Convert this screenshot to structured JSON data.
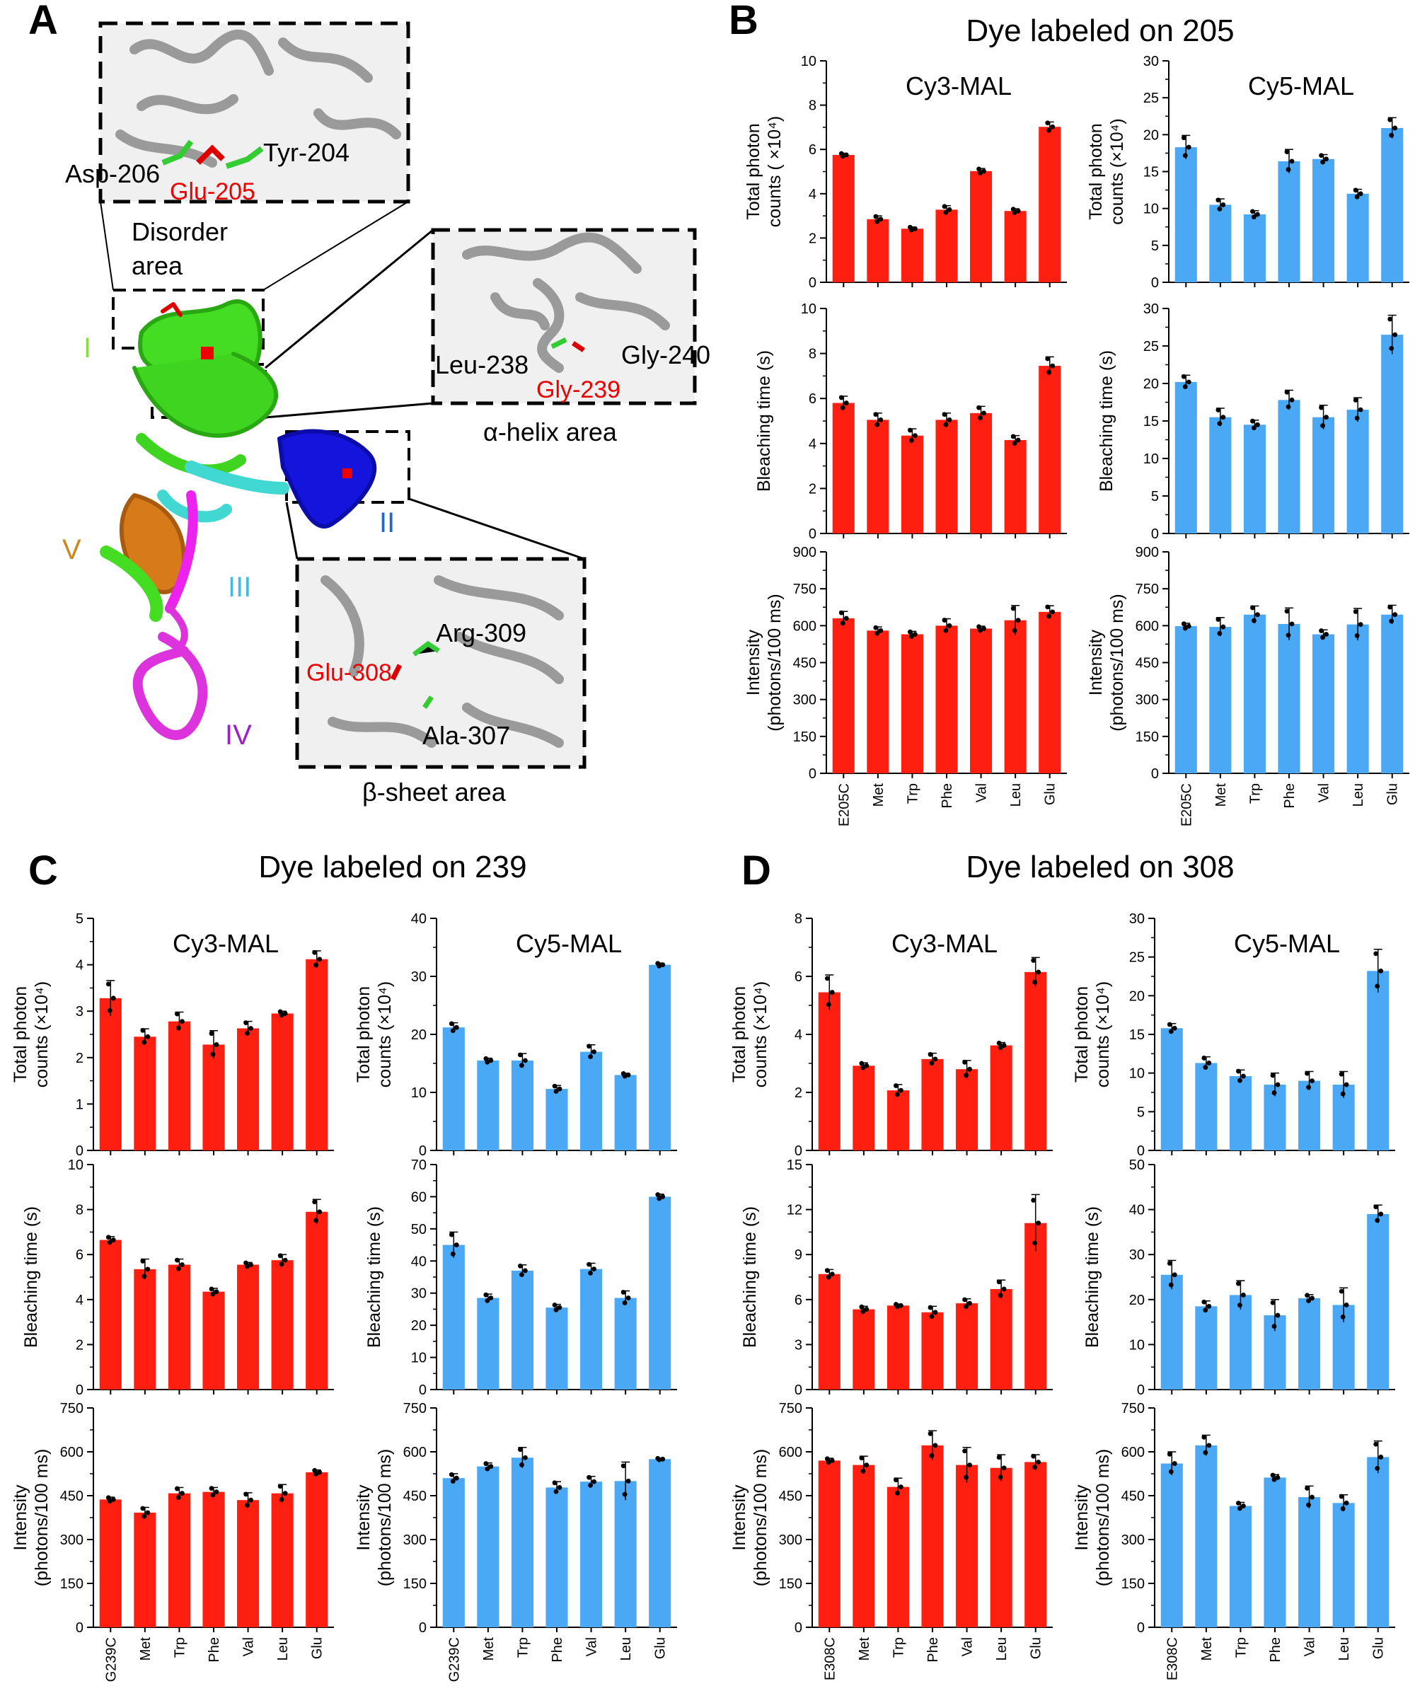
{
  "colors": {
    "cy3": "#ff1f10",
    "cy5": "#4aa8f5"
  },
  "panel_letters": [
    "A",
    "B",
    "C",
    "D"
  ],
  "structure": {
    "labels": {
      "asp206": "Asp-206",
      "glu205": "Glu-205",
      "tyr204": "Tyr-204",
      "disorder1": "Disorder",
      "disorder2": "area",
      "leu238": "Leu-238",
      "gly239": "Gly-239",
      "gly240": "Gly-240",
      "helix": "α-helix area",
      "glu308": "Glu-308",
      "arg309": "Arg-309",
      "ala307": "Ala-307",
      "sheet": "β-sheet area",
      "d1": "I",
      "d2": "II",
      "d3": "III",
      "d4": "IV",
      "d5": "V"
    }
  },
  "chart_data": [
    {
      "type": "bar",
      "group": "B",
      "group_title": "Dye labeled on 205",
      "title": "Cy3-MAL",
      "categories": [
        "E205C",
        "Met",
        "Trp",
        "Phe",
        "Val",
        "Leu",
        "Glu"
      ],
      "values": [
        5.75,
        2.85,
        2.42,
        3.28,
        5.02,
        3.22,
        7.02
      ],
      "errors": [
        0.08,
        0.15,
        0.08,
        0.18,
        0.12,
        0.1,
        0.22
      ],
      "ylabel": [
        "Total photon",
        "counts ( ×10⁴)"
      ],
      "ylim": [
        0,
        10
      ],
      "ticks": [
        0,
        2,
        4,
        6,
        8,
        10
      ],
      "color": "cy3"
    },
    {
      "type": "bar",
      "group": "B",
      "group_title": "Dye labeled on 205",
      "title": "Cy5-MAL",
      "categories": [
        "E205C",
        "Met",
        "Trp",
        "Phe",
        "Val",
        "Leu",
        "Glu"
      ],
      "values": [
        18.3,
        10.5,
        9.2,
        16.4,
        16.7,
        12.0,
        20.9
      ],
      "errors": [
        1.6,
        0.8,
        0.5,
        1.6,
        0.6,
        0.6,
        1.4
      ],
      "ylabel": [
        "Total photon",
        "counts (×10⁴)"
      ],
      "ylim": [
        0,
        30
      ],
      "ticks": [
        0,
        5,
        10,
        15,
        20,
        25,
        30
      ],
      "color": "cy5"
    },
    {
      "type": "bar",
      "group": "B",
      "title": "",
      "categories": [
        "E205C",
        "Met",
        "Trp",
        "Phe",
        "Val",
        "Leu",
        "Glu"
      ],
      "values": [
        5.8,
        5.05,
        4.35,
        5.05,
        5.35,
        4.15,
        7.45
      ],
      "errors": [
        0.3,
        0.3,
        0.3,
        0.3,
        0.3,
        0.2,
        0.4
      ],
      "ylabel": [
        "Bleaching time (s)"
      ],
      "ylim": [
        0,
        10
      ],
      "ticks": [
        0,
        2,
        4,
        6,
        8,
        10
      ],
      "color": "cy3"
    },
    {
      "type": "bar",
      "group": "B",
      "title": "",
      "categories": [
        "E205C",
        "Met",
        "Trp",
        "Phe",
        "Val",
        "Leu",
        "Glu"
      ],
      "values": [
        20.2,
        15.5,
        14.5,
        17.8,
        15.5,
        16.5,
        26.5
      ],
      "errors": [
        0.9,
        1.2,
        0.6,
        1.3,
        1.6,
        1.6,
        2.6
      ],
      "ylabel": [
        "Bleaching time (s)"
      ],
      "ylim": [
        0,
        30
      ],
      "ticks": [
        0,
        5,
        10,
        15,
        20,
        25,
        30
      ],
      "color": "cy5"
    },
    {
      "type": "bar",
      "group": "B",
      "title": "",
      "categories": [
        "E205C",
        "Met",
        "Trp",
        "Phe",
        "Val",
        "Leu",
        "Glu"
      ],
      "values": [
        630,
        580,
        565,
        600,
        588,
        622,
        656
      ],
      "errors": [
        28,
        15,
        12,
        28,
        10,
        60,
        25
      ],
      "ylabel": [
        "Intensity",
        "(photons/100 ms)"
      ],
      "ylim": [
        0,
        900
      ],
      "ticks": [
        0,
        150,
        300,
        450,
        600,
        750,
        900
      ],
      "color": "cy3",
      "show_xlabels": true
    },
    {
      "type": "bar",
      "group": "B",
      "title": "",
      "categories": [
        "E205C",
        "Met",
        "Trp",
        "Phe",
        "Val",
        "Leu",
        "Glu"
      ],
      "values": [
        598,
        595,
        645,
        607,
        565,
        605,
        645
      ],
      "errors": [
        12,
        38,
        35,
        65,
        18,
        65,
        38
      ],
      "ylabel": [
        "Intensity",
        "(photons/100 ms)"
      ],
      "ylim": [
        0,
        900
      ],
      "ticks": [
        0,
        150,
        300,
        450,
        600,
        750,
        900
      ],
      "color": "cy5",
      "show_xlabels": true
    },
    {
      "type": "bar",
      "group": "C",
      "group_title": "Dye labeled on 239",
      "title": "Cy3-MAL",
      "categories": [
        "G239C",
        "Met",
        "Trp",
        "Phe",
        "Val",
        "Leu",
        "Glu"
      ],
      "values": [
        3.28,
        2.45,
        2.78,
        2.28,
        2.63,
        2.95,
        4.12
      ],
      "errors": [
        0.38,
        0.17,
        0.2,
        0.3,
        0.15,
        0.05,
        0.18
      ],
      "ylabel": [
        "Total photon",
        "counts (×10⁴)"
      ],
      "ylim": [
        0,
        5
      ],
      "ticks": [
        0,
        1,
        2,
        3,
        4,
        5
      ],
      "color": "cy3"
    },
    {
      "type": "bar",
      "group": "C",
      "group_title": "Dye labeled on 239",
      "title": "Cy5-MAL",
      "categories": [
        "G239C",
        "Met",
        "Trp",
        "Phe",
        "Val",
        "Leu",
        "Glu"
      ],
      "values": [
        21.2,
        15.5,
        15.5,
        10.6,
        17.0,
        13.0,
        32.0
      ],
      "errors": [
        0.8,
        0.4,
        1.2,
        0.6,
        1.2,
        0.3,
        0.3
      ],
      "ylabel": [
        "Total photon",
        "counts (×10⁴)"
      ],
      "ylim": [
        0,
        40
      ],
      "ticks": [
        0,
        10,
        20,
        30,
        40
      ],
      "color": "cy5"
    },
    {
      "type": "bar",
      "group": "C",
      "title": "",
      "categories": [
        "G239C",
        "Met",
        "Trp",
        "Phe",
        "Val",
        "Leu",
        "Glu"
      ],
      "values": [
        6.65,
        5.35,
        5.55,
        4.35,
        5.55,
        5.75,
        7.9
      ],
      "errors": [
        0.15,
        0.45,
        0.25,
        0.15,
        0.1,
        0.25,
        0.55
      ],
      "ylabel": [
        "Bleaching time (s)"
      ],
      "ylim": [
        0,
        10
      ],
      "ticks": [
        0,
        2,
        4,
        6,
        8,
        10
      ],
      "color": "cy3"
    },
    {
      "type": "bar",
      "group": "C",
      "title": "",
      "categories": [
        "G239C",
        "Met",
        "Trp",
        "Phe",
        "Val",
        "Leu",
        "Glu"
      ],
      "values": [
        45.0,
        28.5,
        37.0,
        25.5,
        37.5,
        28.5,
        60.0
      ],
      "errors": [
        4,
        1.2,
        1.8,
        1.0,
        1.8,
        2.2,
        0.8
      ],
      "ylabel": [
        "Bleaching time (s)"
      ],
      "ylim": [
        0,
        70
      ],
      "ticks": [
        0,
        10,
        20,
        30,
        40,
        50,
        60,
        70
      ],
      "color": "cy5"
    },
    {
      "type": "bar",
      "group": "C",
      "title": "",
      "categories": [
        "G239C",
        "Met",
        "Trp",
        "Phe",
        "Val",
        "Leu",
        "Glu"
      ],
      "values": [
        437,
        392,
        458,
        463,
        435,
        458,
        530
      ],
      "errors": [
        8,
        18,
        20,
        15,
        25,
        30,
        8
      ],
      "ylabel": [
        "Intensity",
        "(photons/100 ms)"
      ],
      "ylim": [
        0,
        750
      ],
      "ticks": [
        0,
        150,
        300,
        450,
        600,
        750
      ],
      "color": "cy3",
      "show_xlabels": true
    },
    {
      "type": "bar",
      "group": "C",
      "title": "",
      "categories": [
        "G239C",
        "Met",
        "Trp",
        "Phe",
        "Val",
        "Leu",
        "Glu"
      ],
      "values": [
        510,
        550,
        580,
        478,
        498,
        500,
        575
      ],
      "errors": [
        15,
        12,
        35,
        20,
        18,
        65,
        3
      ],
      "ylabel": [
        "Intensity",
        "(photons/100 ms)"
      ],
      "ylim": [
        0,
        750
      ],
      "ticks": [
        0,
        150,
        300,
        450,
        600,
        750
      ],
      "color": "cy5",
      "show_xlabels": true
    },
    {
      "type": "bar",
      "group": "D",
      "group_title": "Dye labeled on 308",
      "title": "Cy3-MAL",
      "categories": [
        "E308C",
        "Met",
        "Trp",
        "Phe",
        "Val",
        "Leu",
        "Glu"
      ],
      "values": [
        5.45,
        2.92,
        2.07,
        3.15,
        2.8,
        3.62,
        6.15
      ],
      "errors": [
        0.6,
        0.1,
        0.2,
        0.2,
        0.3,
        0.1,
        0.5
      ],
      "ylabel": [
        "Total photon",
        "counts (×10⁴)"
      ],
      "ylim": [
        0,
        8
      ],
      "ticks": [
        0,
        2,
        4,
        6,
        8
      ],
      "color": "cy3"
    },
    {
      "type": "bar",
      "group": "D",
      "group_title": "Dye labeled on 308",
      "title": "Cy5-MAL",
      "categories": [
        "E308C",
        "Met",
        "Trp",
        "Phe",
        "Val",
        "Leu",
        "Glu"
      ],
      "values": [
        15.8,
        11.3,
        9.6,
        8.5,
        9.0,
        8.5,
        23.2
      ],
      "errors": [
        0.6,
        0.8,
        0.8,
        1.5,
        1.2,
        1.7,
        2.8
      ],
      "ylabel": [
        "Total photon",
        "counts (×10⁴)"
      ],
      "ylim": [
        0,
        30
      ],
      "ticks": [
        0,
        5,
        10,
        15,
        20,
        25,
        30
      ],
      "color": "cy5"
    },
    {
      "type": "bar",
      "group": "D",
      "title": "",
      "categories": [
        "E308C",
        "Met",
        "Trp",
        "Phe",
        "Val",
        "Leu",
        "Glu"
      ],
      "values": [
        7.7,
        5.35,
        5.6,
        5.15,
        5.75,
        6.7,
        11.1
      ],
      "errors": [
        0.3,
        0.2,
        0.1,
        0.4,
        0.3,
        0.6,
        1.9
      ],
      "ylabel": [
        "Bleaching time (s)"
      ],
      "ylim": [
        0,
        15
      ],
      "ticks": [
        0,
        3,
        6,
        9,
        12,
        15
      ],
      "color": "cy3"
    },
    {
      "type": "bar",
      "group": "D",
      "title": "",
      "categories": [
        "E308C",
        "Met",
        "Trp",
        "Phe",
        "Val",
        "Leu",
        "Glu"
      ],
      "values": [
        25.5,
        18.5,
        21.0,
        16.5,
        20.3,
        18.8,
        39.0
      ],
      "errors": [
        3.2,
        1.2,
        3.2,
        3.5,
        0.8,
        3.8,
        2.0
      ],
      "ylabel": [
        "Bleaching time (s)"
      ],
      "ylim": [
        0,
        50
      ],
      "ticks": [
        0,
        10,
        20,
        30,
        40,
        50
      ],
      "color": "cy5"
    },
    {
      "type": "bar",
      "group": "D",
      "title": "",
      "categories": [
        "E308C",
        "Met",
        "Trp",
        "Phe",
        "Val",
        "Leu",
        "Glu"
      ],
      "values": [
        570,
        555,
        480,
        622,
        555,
        545,
        565
      ],
      "errors": [
        8,
        30,
        30,
        50,
        60,
        45,
        25
      ],
      "ylabel": [
        "Intensity",
        "(photons/100 ms)"
      ],
      "ylim": [
        0,
        750
      ],
      "ticks": [
        0,
        150,
        300,
        450,
        600,
        750
      ],
      "color": "cy3",
      "show_xlabels": true
    },
    {
      "type": "bar",
      "group": "D",
      "title": "",
      "categories": [
        "E308C",
        "Met",
        "Trp",
        "Phe",
        "Val",
        "Leu",
        "Glu"
      ],
      "values": [
        560,
        622,
        415,
        512,
        445,
        425,
        582
      ],
      "errors": [
        40,
        35,
        12,
        10,
        38,
        28,
        55
      ],
      "ylabel": [
        "Intensity",
        "(photons/100 ms)"
      ],
      "ylim": [
        0,
        750
      ],
      "ticks": [
        0,
        150,
        300,
        450,
        600,
        750
      ],
      "color": "cy5",
      "show_xlabels": true
    }
  ]
}
